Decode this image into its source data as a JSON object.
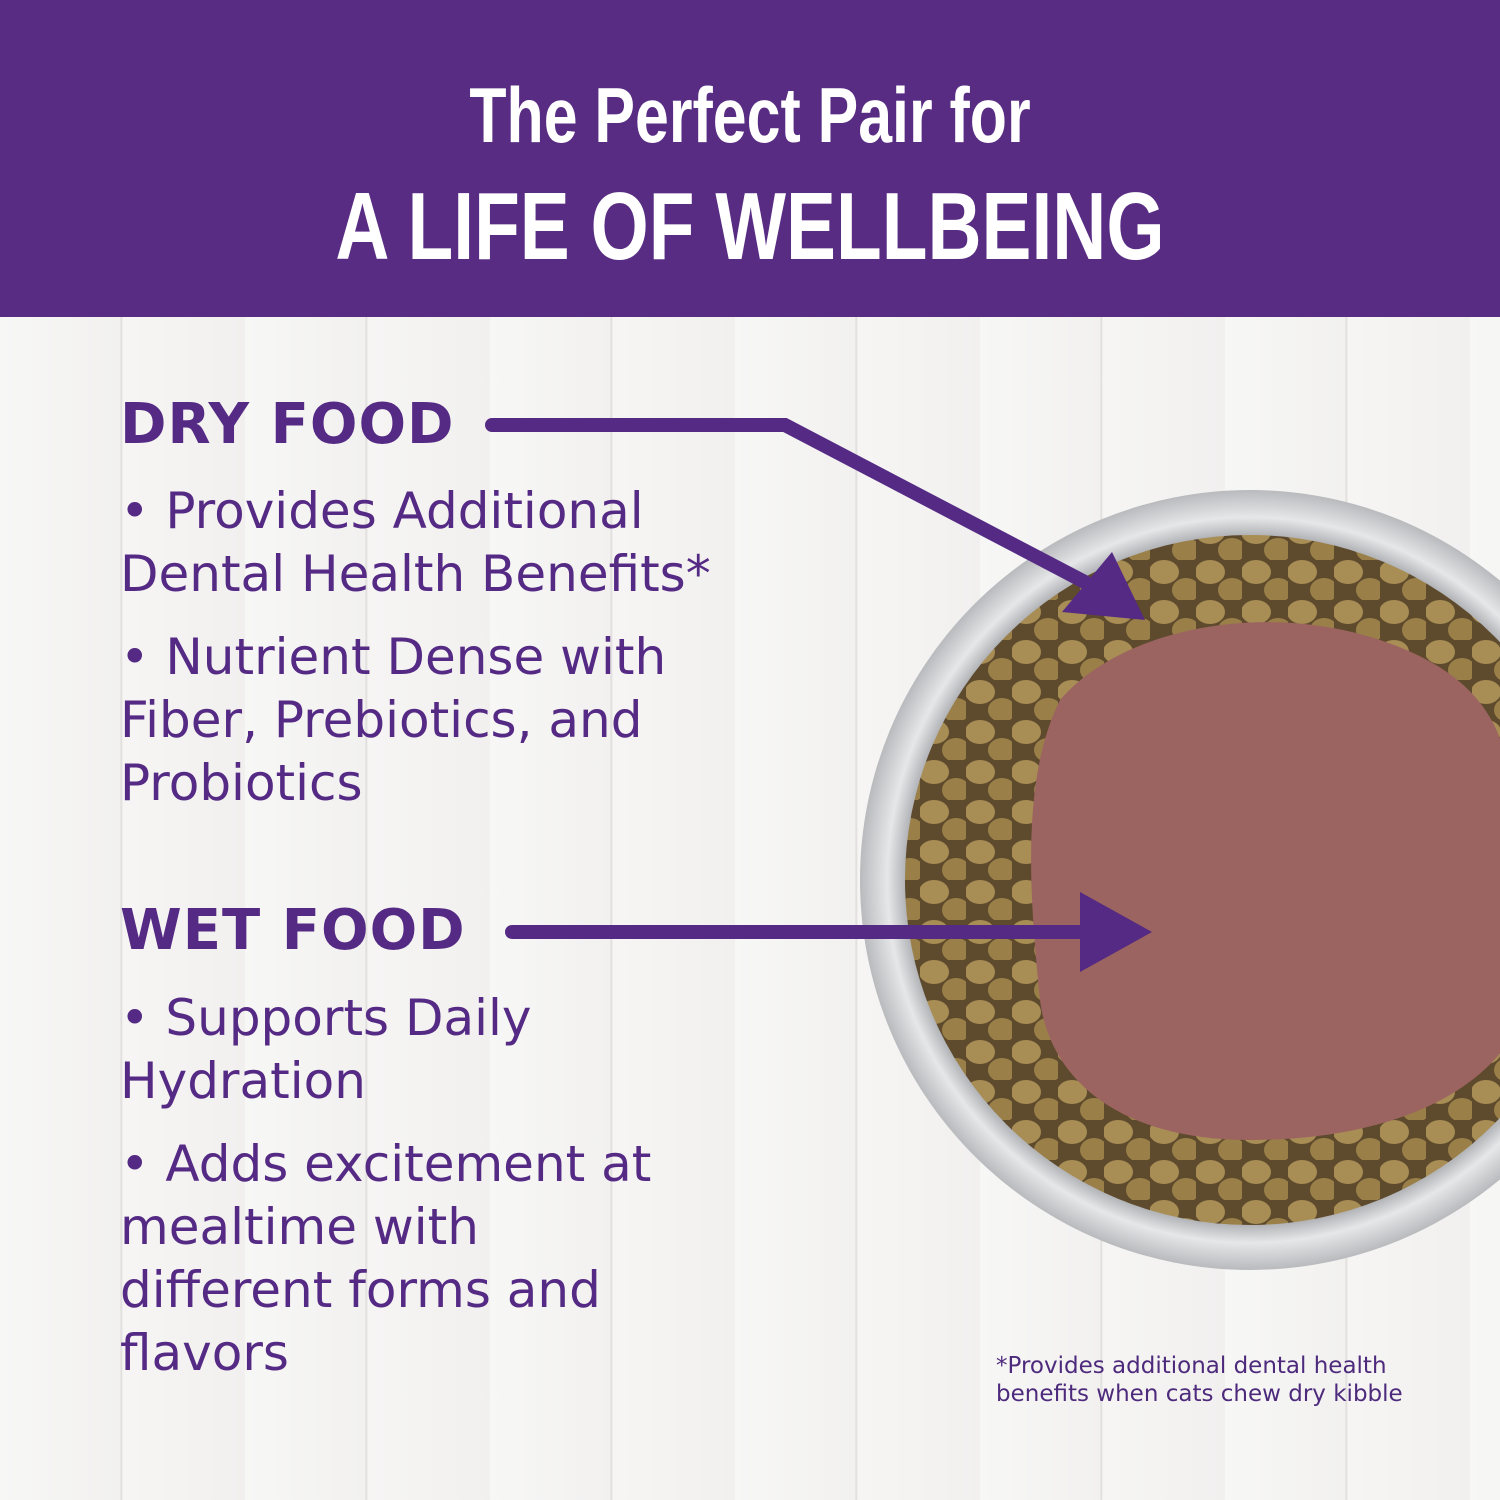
{
  "header": {
    "line1": "The Perfect Pair for",
    "line2": "A LIFE OF WELLBEING"
  },
  "dry": {
    "title": "DRY FOOD",
    "bullets": [
      "• Provides Additional Dental Health Benefits*",
      "• Nutrient Dense with Fiber, Prebiotics, and Probiotics"
    ]
  },
  "wet": {
    "title": "WET FOOD",
    "bullets": [
      "• Supports Daily Hydration",
      "• Adds excitement at mealtime with different forms and flavors"
    ]
  },
  "footnote": "*Provides additional dental health benefits when cats chew dry kibble",
  "colors": {
    "brand_purple": "#582c83",
    "text_purple": "#552a84"
  }
}
